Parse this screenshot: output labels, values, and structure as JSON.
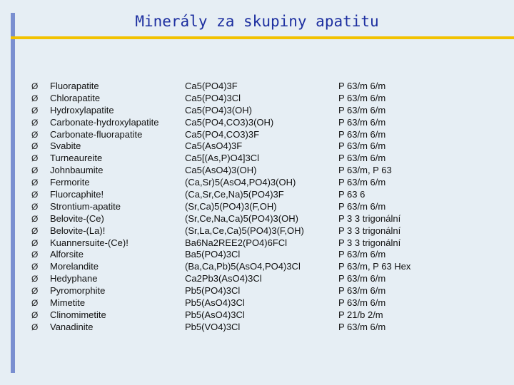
{
  "title": "Minerály za skupiny apatitu",
  "bullet": "Ø",
  "rows": [
    {
      "name": "Fluorapatite",
      "formula": "Ca5(PO4)3F",
      "space_group": "P 63/m 6/m"
    },
    {
      "name": "Chlorapatite",
      "formula": "Ca5(PO4)3Cl",
      "space_group": "P 63/m 6/m"
    },
    {
      "name": "Hydroxylapatite",
      "formula": "Ca5(PO4)3(OH)",
      "space_group": "P 63/m 6/m"
    },
    {
      "name": "Carbonate-hydroxylapatite",
      "formula": "Ca5(PO4,CO3)3(OH)",
      "space_group": "P 63/m 6/m"
    },
    {
      "name": "Carbonate-fluorapatite",
      "formula": "Ca5(PO4,CO3)3F",
      "space_group": "P 63/m 6/m"
    },
    {
      "name": "Svabite",
      "formula": "Ca5(AsO4)3F",
      "space_group": "P 63/m 6/m"
    },
    {
      "name": "Turneaureite",
      "formula": "Ca5[(As,P)O4]3Cl",
      "space_group": "P 63/m 6/m"
    },
    {
      "name": "Johnbaumite",
      "formula": "Ca5(AsO4)3(OH)",
      "space_group": "P 63/m, P 63"
    },
    {
      "name": "Fermorite",
      "formula": "(Ca,Sr)5(AsO4,PO4)3(OH)",
      "space_group": "P 63/m 6/m"
    },
    {
      "name": "Fluorcaphite!",
      "formula": "(Ca,Sr,Ce,Na)5(PO4)3F",
      "space_group": "P 63 6"
    },
    {
      "name": "Strontium-apatite",
      "formula": "(Sr,Ca)5(PO4)3(F,OH)",
      "space_group": "P 63/m 6/m"
    },
    {
      "name": "Belovite-(Ce)",
      "formula": "(Sr,Ce,Na,Ca)5(PO4)3(OH)",
      "space_group": "P 3 3 trigonální"
    },
    {
      "name": "Belovite-(La)!",
      "formula": "(Sr,La,Ce,Ca)5(PO4)3(F,OH)",
      "space_group": "P 3 3 trigonální"
    },
    {
      "name": "Kuannersuite-(Ce)!",
      "formula": "Ba6Na2REE2(PO4)6FCl",
      "space_group": "P 3 3 trigonální"
    },
    {
      "name": "Alforsite",
      "formula": "Ba5(PO4)3Cl",
      "space_group": "P 63/m 6/m"
    },
    {
      "name": "Morelandite",
      "formula": "(Ba,Ca,Pb)5(AsO4,PO4)3Cl",
      "space_group": "P 63/m, P 63 Hex"
    },
    {
      "name": "Hedyphane",
      "formula": "Ca2Pb3(AsO4)3Cl",
      "space_group": "P 63/m 6/m"
    },
    {
      "name": "Pyromorphite",
      "formula": "Pb5(PO4)3Cl",
      "space_group": "P 63/m 6/m"
    },
    {
      "name": "Mimetite",
      "formula": "Pb5(AsO4)3Cl",
      "space_group": "P 63/m 6/m"
    },
    {
      "name": "Clinomimetite",
      "formula": "Pb5(AsO4)3Cl",
      "space_group": "P 21/b 2/m"
    },
    {
      "name": "Vanadinite",
      "formula": "Pb5(VO4)3Cl",
      "space_group": "P 63/m 6/m"
    }
  ]
}
